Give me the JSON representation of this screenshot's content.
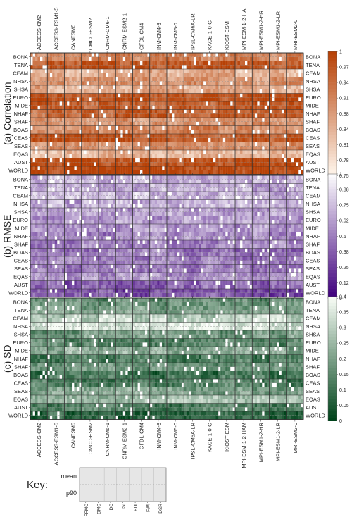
{
  "models": [
    "ACCESS-CM2",
    "ACCESS-ESM1-5",
    "CANESM5",
    "CMCC-ESM2",
    "CNRM-CM6-1",
    "CNRM-ESM2-1",
    "GFDL-CM4",
    "INM-CM4-8",
    "INM-CM5-0",
    "IPSL-CM6A-LR",
    "KACE-1-0-G",
    "KIOST-ESM",
    "MPI-ESM-1-2-HAM",
    "MPI-ESM1-2-HR",
    "MPI-ESM1-2-LR",
    "MRI-ESM2-0"
  ],
  "models_top": [
    "ACCESS-CM2",
    "ACCESS-ESM1-5",
    "CANESM5",
    "CMCC-ESM2",
    "CNRM-CM6-1",
    "CNRM-ESM2-1",
    "GFDL-CM4",
    "INM-CM4-8",
    "INM-CM5-0",
    "IPSL-CM6A-LR",
    "KACE-1-0-G",
    "KIOST-ESM",
    "MPI-ESM-1-2-HA",
    "MPI-ESM1-2-HR",
    "MPI-ESM1-2-LR",
    "MRI-ESM2-0"
  ],
  "regions": [
    "BONA",
    "TENA",
    "CEAM",
    "NHSA",
    "SHSA",
    "EURO",
    "MIDE",
    "NHAF",
    "SHAF",
    "BOAS",
    "CEAS",
    "SEAS",
    "EQAS",
    "AUST",
    "WORLD"
  ],
  "indices": [
    "FFMC",
    "DMC",
    "DC",
    "ISI",
    "BUI",
    "FWI",
    "DSR"
  ],
  "key": {
    "label": "Key:",
    "rows": [
      "mean",
      "p90"
    ]
  },
  "chart_data": [
    {
      "type": "heatmap",
      "title": "(a) Correlation",
      "colorbar_ticks": [
        "1",
        "0.97",
        "0.94",
        "0.91",
        "0.88",
        "0.84",
        "0.81",
        "0.78",
        "0.75"
      ],
      "range": [
        0.75,
        1.0
      ],
      "colors": {
        "low": "#fff5eb",
        "high": "#b74106"
      },
      "region_mean": [
        0.9,
        0.97,
        0.84,
        0.87,
        0.85,
        0.97,
        0.95,
        0.94,
        0.88,
        0.9,
        0.96,
        0.89,
        0.83,
        0.98,
        0.99
      ]
    },
    {
      "type": "heatmap",
      "title": "(b) RMSE",
      "colorbar_ticks": [
        "1",
        "0.88",
        "0.75",
        "0.62",
        "0.5",
        "0.38",
        "0.25",
        "0.12",
        "0"
      ],
      "range": [
        0,
        1.0
      ],
      "colors": {
        "low": "#3f007d",
        "high": "#fcfbfd"
      },
      "region_mean": [
        0.7,
        0.68,
        0.72,
        0.7,
        0.58,
        0.6,
        0.62,
        0.55,
        0.52,
        0.5,
        0.48,
        0.5,
        0.56,
        0.4,
        0.3
      ]
    },
    {
      "type": "heatmap",
      "title": "(c) SD",
      "colorbar_ticks": [
        "0.4",
        "0.35",
        "0.3",
        "0.25",
        "0.2",
        "0.15",
        "0.1",
        "0.05",
        "0"
      ],
      "range": [
        0,
        0.4
      ],
      "colors": {
        "low": "#00441b",
        "high": "#f7fcf5"
      },
      "region_mean": [
        0.16,
        0.2,
        0.3,
        0.34,
        0.18,
        0.14,
        0.22,
        0.12,
        0.16,
        0.1,
        0.12,
        0.2,
        0.26,
        0.12,
        0.06
      ]
    }
  ]
}
